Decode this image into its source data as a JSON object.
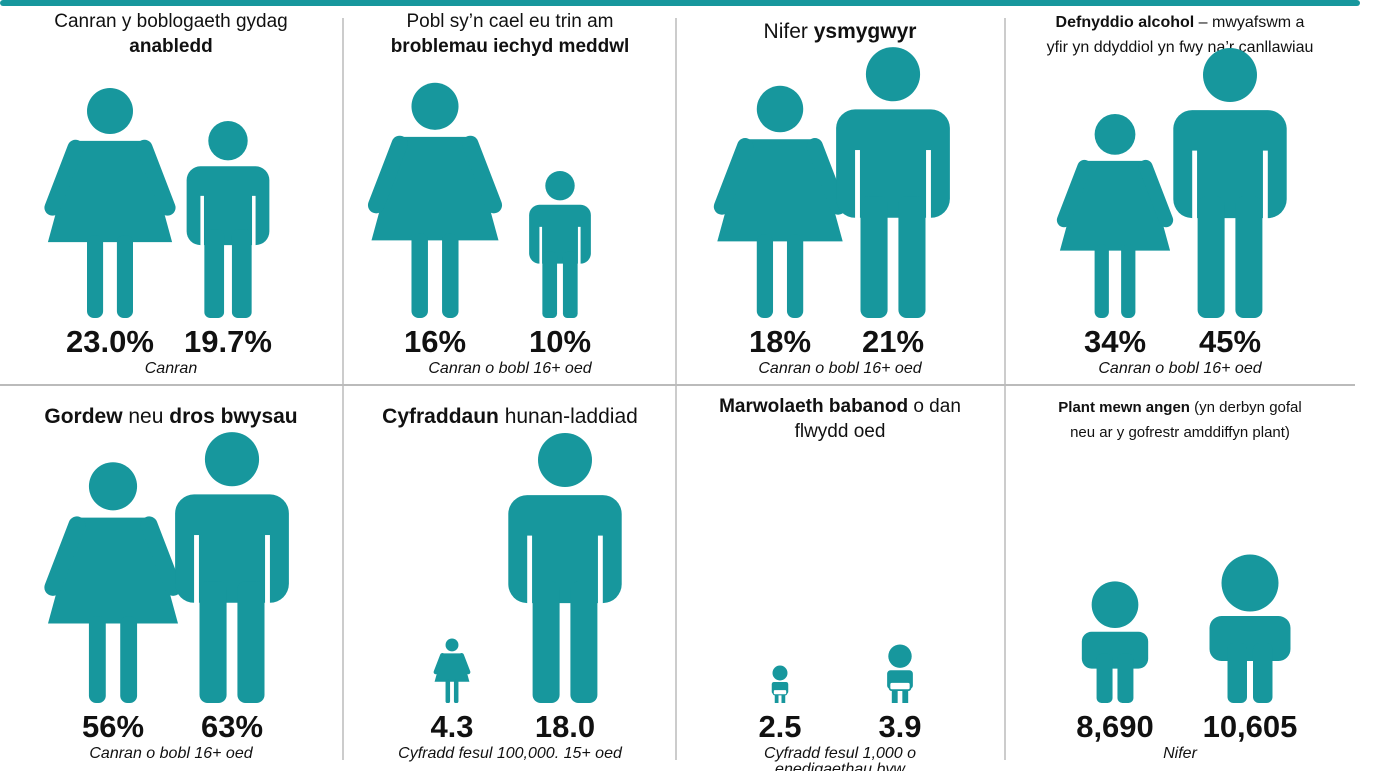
{
  "panels": [
    {
      "title": [
        [
          {
            "text": "Canran y boblogaeth gydag",
            "bold": false
          }
        ],
        [
          {
            "text": "anabledd",
            "bold": true
          }
        ]
      ],
      "values": [
        23.0,
        19.7
      ],
      "value_labels": [
        "23.0%",
        "19.7%"
      ],
      "icons": [
        "female",
        "male"
      ],
      "caption": [
        "Canran"
      ]
    },
    {
      "title": [
        [
          {
            "text": "Pobl sy’n cael eu trin am",
            "bold": false
          }
        ],
        [
          {
            "text": "broblemau iechyd meddwl",
            "bold": true
          }
        ]
      ],
      "values": [
        16,
        10
      ],
      "value_labels": [
        "16%",
        "10%"
      ],
      "icons": [
        "female",
        "male"
      ],
      "caption": [
        "Canran o bobl 16+ oed"
      ]
    },
    {
      "title": [
        [
          {
            "text": "Nifer ",
            "bold": false
          },
          {
            "text": "ysmygwyr",
            "bold": true
          }
        ]
      ],
      "values": [
        18,
        21
      ],
      "value_labels": [
        "18%",
        "21%"
      ],
      "icons": [
        "female",
        "male"
      ],
      "caption": [
        "Canran o bobl 16+ oed"
      ]
    },
    {
      "title": [
        [
          {
            "text": "Defnyddio alcohol",
            "bold": true
          },
          {
            "text": " – mwyafswm a",
            "bold": false
          }
        ],
        [
          {
            "text": "yfir yn ddyddiol yn fwy na’r canllawiau",
            "bold": false
          }
        ]
      ],
      "values": [
        34,
        45
      ],
      "value_labels": [
        "34%",
        "45%"
      ],
      "icons": [
        "female",
        "male"
      ],
      "caption": [
        "Canran o bobl 16+ oed"
      ]
    },
    {
      "title": [
        [
          {
            "text": "Gordew",
            "bold": true
          },
          {
            "text": " neu ",
            "bold": false
          },
          {
            "text": "dros bwysau",
            "bold": true
          }
        ]
      ],
      "values": [
        56,
        63
      ],
      "value_labels": [
        "56%",
        "63%"
      ],
      "icons": [
        "female",
        "male"
      ],
      "caption": [
        "Canran o bobl 16+ oed"
      ]
    },
    {
      "title": [
        [
          {
            "text": "Cyfraddaun",
            "bold": true
          },
          {
            "text": " hunan-laddiad",
            "bold": false
          }
        ]
      ],
      "values": [
        4.3,
        18.0
      ],
      "value_labels": [
        "4.3",
        "18.0"
      ],
      "icons": [
        "female",
        "male"
      ],
      "caption": [
        "Cyfradd fesul 100,000. 15+ oed"
      ]
    },
    {
      "title": [
        [
          {
            "text": "Marwolaeth babanod",
            "bold": true
          },
          {
            "text": " o dan",
            "bold": false
          }
        ],
        [
          {
            "text": "flwydd oed",
            "bold": false
          }
        ]
      ],
      "values": [
        2.5,
        3.9
      ],
      "value_labels": [
        "2.5",
        "3.9"
      ],
      "icons": [
        "baby",
        "baby"
      ],
      "caption": [
        "Cyfradd fesul 1,000 o",
        "enedigaethau byw"
      ]
    },
    {
      "title": [
        [
          {
            "text": "Plant mewn angen",
            "bold": true
          },
          {
            "text": " (yn derbyn gofal",
            "bold": false
          }
        ],
        [
          {
            "text": "neu ar y gofrestr amddiffyn plant)",
            "bold": false
          }
        ]
      ],
      "values": [
        8690,
        10605
      ],
      "value_labels": [
        "8,690",
        "10,605"
      ],
      "icons": [
        "child",
        "child"
      ],
      "caption": [
        "Nifer"
      ]
    }
  ]
}
